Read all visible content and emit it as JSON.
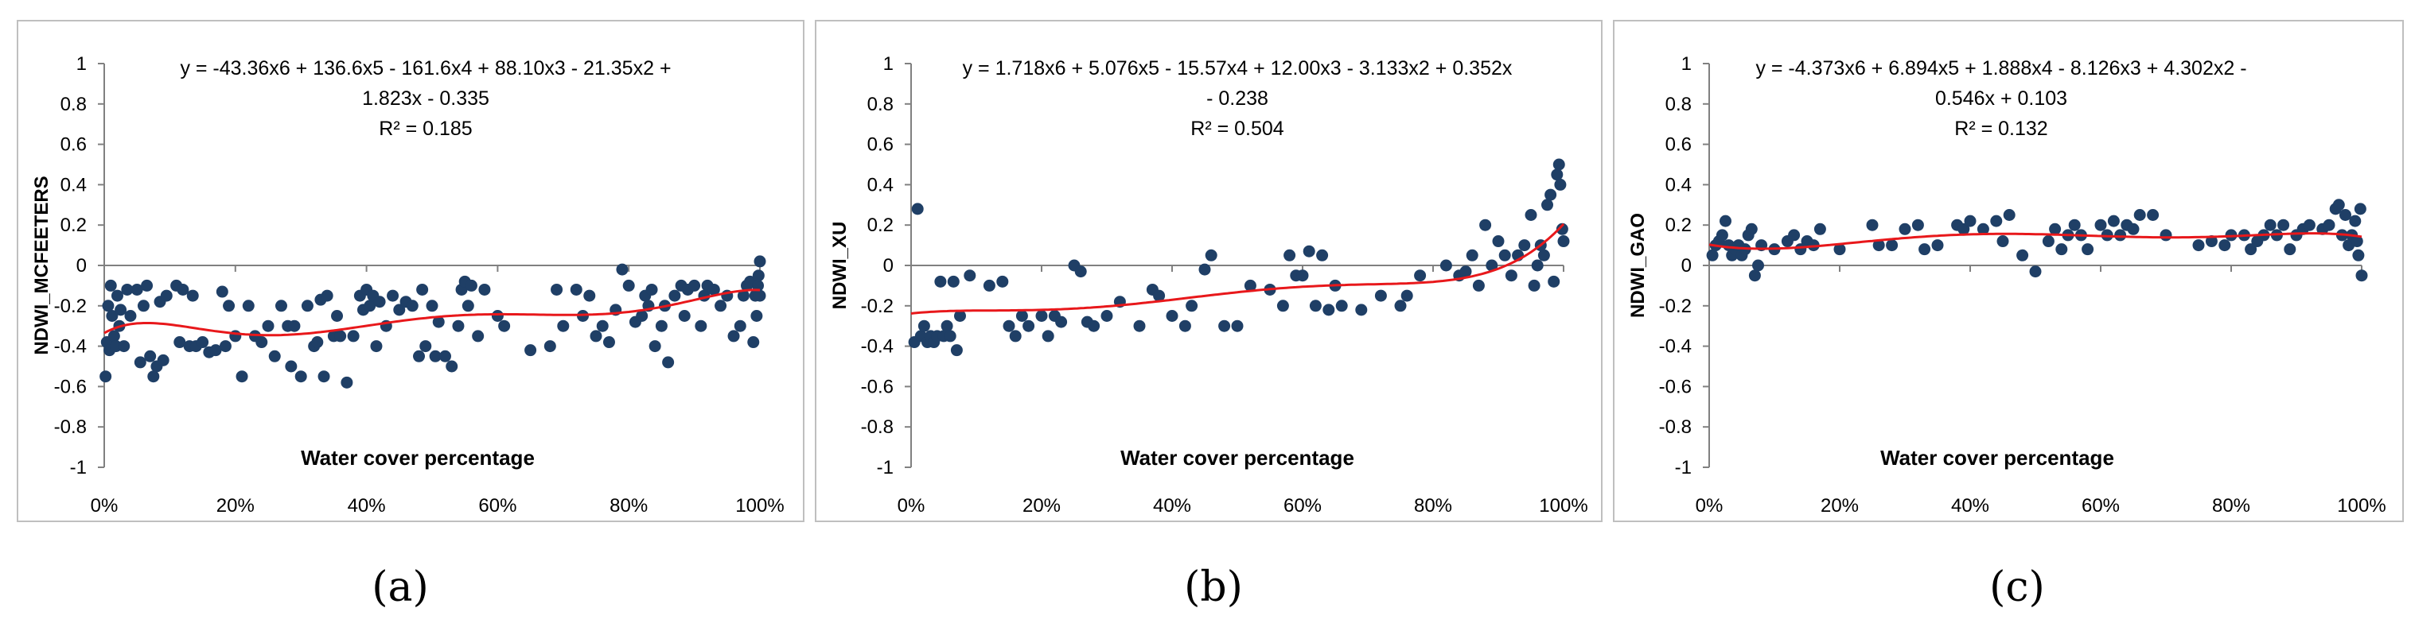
{
  "colors": {
    "marker": "#1f3f66",
    "trend": "#e8181b",
    "axis": "#808080",
    "frame": "#bfbfbf",
    "text": "#000000"
  },
  "chart_data": [
    {
      "type": "scatter",
      "caption": "(a)",
      "ylabel": "NDWI_MCFEETERS",
      "xlabel": "Water cover percentage",
      "xlim": [
        0,
        100
      ],
      "ylim": [
        -1,
        1
      ],
      "y_ticks": [
        "1",
        "0.8",
        "0.6",
        "0.4",
        "0.2",
        "0",
        "-0.2",
        "-0.4",
        "-0.6",
        "-0.8",
        "-1"
      ],
      "x_ticks": [
        "0%",
        "20%",
        "40%",
        "60%",
        "80%",
        "100%"
      ],
      "equation_lines": [
        "y = -43.36x6 + 136.6x5 - 161.6x4 + 88.10x3 - 21.35x2 +",
        "1.823x - 0.335"
      ],
      "r2_label": "R² = 0.185",
      "trend_coefficients": [
        -43.36,
        136.6,
        -161.6,
        88.1,
        -21.35,
        1.823,
        -0.335
      ],
      "points": [
        [
          0.2,
          -0.55
        ],
        [
          0.4,
          -0.38
        ],
        [
          0.6,
          -0.2
        ],
        [
          0.8,
          -0.42
        ],
        [
          1,
          -0.1
        ],
        [
          1.2,
          -0.25
        ],
        [
          1.5,
          -0.35
        ],
        [
          1.8,
          -0.4
        ],
        [
          2,
          -0.15
        ],
        [
          2.3,
          -0.3
        ],
        [
          2.5,
          -0.22
        ],
        [
          3,
          -0.4
        ],
        [
          3.5,
          -0.12
        ],
        [
          4,
          -0.25
        ],
        [
          5,
          -0.12
        ],
        [
          5.5,
          -0.48
        ],
        [
          6,
          -0.2
        ],
        [
          6.5,
          -0.1
        ],
        [
          7,
          -0.45
        ],
        [
          7.5,
          -0.55
        ],
        [
          8,
          -0.5
        ],
        [
          8.5,
          -0.18
        ],
        [
          9,
          -0.47
        ],
        [
          9.5,
          -0.15
        ],
        [
          11,
          -0.1
        ],
        [
          11.5,
          -0.38
        ],
        [
          12,
          -0.12
        ],
        [
          13,
          -0.4
        ],
        [
          13.5,
          -0.15
        ],
        [
          14,
          -0.4
        ],
        [
          15,
          -0.38
        ],
        [
          16,
          -0.43
        ],
        [
          17,
          -0.42
        ],
        [
          18,
          -0.13
        ],
        [
          18.5,
          -0.4
        ],
        [
          19,
          -0.2
        ],
        [
          20,
          -0.35
        ],
        [
          21,
          -0.55
        ],
        [
          22,
          -0.2
        ],
        [
          23,
          -0.35
        ],
        [
          24,
          -0.38
        ],
        [
          25,
          -0.3
        ],
        [
          26,
          -0.45
        ],
        [
          27,
          -0.2
        ],
        [
          28,
          -0.3
        ],
        [
          28.5,
          -0.5
        ],
        [
          29,
          -0.3
        ],
        [
          30,
          -0.55
        ],
        [
          31,
          -0.2
        ],
        [
          32,
          -0.4
        ],
        [
          32.5,
          -0.38
        ],
        [
          33,
          -0.17
        ],
        [
          33.5,
          -0.55
        ],
        [
          34,
          -0.15
        ],
        [
          35,
          -0.35
        ],
        [
          35.5,
          -0.25
        ],
        [
          36,
          -0.35
        ],
        [
          37,
          -0.58
        ],
        [
          38,
          -0.35
        ],
        [
          39,
          -0.15
        ],
        [
          39.5,
          -0.22
        ],
        [
          40,
          -0.12
        ],
        [
          40.5,
          -0.2
        ],
        [
          41,
          -0.15
        ],
        [
          41.5,
          -0.4
        ],
        [
          42,
          -0.18
        ],
        [
          43,
          -0.3
        ],
        [
          44,
          -0.15
        ],
        [
          45,
          -0.22
        ],
        [
          46,
          -0.18
        ],
        [
          47,
          -0.2
        ],
        [
          48,
          -0.45
        ],
        [
          48.5,
          -0.12
        ],
        [
          49,
          -0.4
        ],
        [
          50,
          -0.2
        ],
        [
          50.5,
          -0.45
        ],
        [
          51,
          -0.28
        ],
        [
          52,
          -0.45
        ],
        [
          53,
          -0.5
        ],
        [
          54,
          -0.3
        ],
        [
          54.5,
          -0.12
        ],
        [
          55,
          -0.08
        ],
        [
          55.5,
          -0.2
        ],
        [
          56,
          -0.1
        ],
        [
          57,
          -0.35
        ],
        [
          58,
          -0.12
        ],
        [
          60,
          -0.25
        ],
        [
          61,
          -0.3
        ],
        [
          65,
          -0.42
        ],
        [
          68,
          -0.4
        ],
        [
          69,
          -0.12
        ],
        [
          70,
          -0.3
        ],
        [
          72,
          -0.12
        ],
        [
          73,
          -0.25
        ],
        [
          74,
          -0.15
        ],
        [
          75,
          -0.35
        ],
        [
          76,
          -0.3
        ],
        [
          77,
          -0.38
        ],
        [
          78,
          -0.22
        ],
        [
          79,
          -0.02
        ],
        [
          80,
          -0.1
        ],
        [
          81,
          -0.28
        ],
        [
          82,
          -0.25
        ],
        [
          82.5,
          -0.15
        ],
        [
          83,
          -0.2
        ],
        [
          83.5,
          -0.12
        ],
        [
          84,
          -0.4
        ],
        [
          85,
          -0.3
        ],
        [
          85.5,
          -0.2
        ],
        [
          86,
          -0.48
        ],
        [
          87,
          -0.15
        ],
        [
          88,
          -0.1
        ],
        [
          88.5,
          -0.25
        ],
        [
          89,
          -0.12
        ],
        [
          90,
          -0.1
        ],
        [
          91,
          -0.3
        ],
        [
          91.5,
          -0.15
        ],
        [
          92,
          -0.1
        ],
        [
          93,
          -0.12
        ],
        [
          94,
          -0.2
        ],
        [
          95,
          -0.15
        ],
        [
          96,
          -0.35
        ],
        [
          97,
          -0.3
        ],
        [
          97.5,
          -0.15
        ],
        [
          98,
          -0.1
        ],
        [
          98.5,
          -0.08
        ],
        [
          99,
          -0.38
        ],
        [
          99.3,
          -0.15
        ],
        [
          99.5,
          -0.25
        ],
        [
          99.7,
          -0.1
        ],
        [
          99.8,
          -0.05
        ],
        [
          100,
          0.02
        ],
        [
          100,
          -0.15
        ]
      ]
    },
    {
      "type": "scatter",
      "caption": "(b)",
      "ylabel": "NDWI_XU",
      "xlabel": "Water cover percentage",
      "xlim": [
        0,
        100
      ],
      "ylim": [
        -1,
        1
      ],
      "y_ticks": [
        "1",
        "0.8",
        "0.6",
        "0.4",
        "0.2",
        "0",
        "-0.2",
        "-0.4",
        "-0.6",
        "-0.8",
        "-1"
      ],
      "x_ticks": [
        "0%",
        "20%",
        "40%",
        "60%",
        "80%",
        "100%"
      ],
      "equation_lines": [
        "y = 1.718x6 + 5.076x5 - 15.57x4 + 12.00x3 - 3.133x2 + 0.352x",
        "- 0.238"
      ],
      "r2_label": "R² = 0.504",
      "trend_coefficients": [
        1.718,
        5.076,
        -15.57,
        12.0,
        -3.133,
        0.352,
        -0.238
      ],
      "points": [
        [
          0.5,
          -0.38
        ],
        [
          1,
          0.28
        ],
        [
          1.5,
          -0.35
        ],
        [
          2,
          -0.3
        ],
        [
          2.5,
          -0.38
        ],
        [
          3,
          -0.35
        ],
        [
          3.5,
          -0.38
        ],
        [
          4,
          -0.35
        ],
        [
          4.5,
          -0.08
        ],
        [
          5,
          -0.35
        ],
        [
          5.5,
          -0.3
        ],
        [
          6,
          -0.35
        ],
        [
          6.5,
          -0.08
        ],
        [
          7,
          -0.42
        ],
        [
          7.5,
          -0.25
        ],
        [
          9,
          -0.05
        ],
        [
          12,
          -0.1
        ],
        [
          14,
          -0.08
        ],
        [
          15,
          -0.3
        ],
        [
          16,
          -0.35
        ],
        [
          17,
          -0.25
        ],
        [
          18,
          -0.3
        ],
        [
          20,
          -0.25
        ],
        [
          21,
          -0.35
        ],
        [
          22,
          -0.25
        ],
        [
          23,
          -0.28
        ],
        [
          25,
          0.0
        ],
        [
          26,
          -0.03
        ],
        [
          27,
          -0.28
        ],
        [
          28,
          -0.3
        ],
        [
          30,
          -0.25
        ],
        [
          32,
          -0.18
        ],
        [
          35,
          -0.3
        ],
        [
          37,
          -0.12
        ],
        [
          38,
          -0.15
        ],
        [
          40,
          -0.25
        ],
        [
          42,
          -0.3
        ],
        [
          43,
          -0.2
        ],
        [
          45,
          -0.02
        ],
        [
          46,
          0.05
        ],
        [
          48,
          -0.3
        ],
        [
          50,
          -0.3
        ],
        [
          52,
          -0.1
        ],
        [
          55,
          -0.12
        ],
        [
          57,
          -0.2
        ],
        [
          58,
          0.05
        ],
        [
          59,
          -0.05
        ],
        [
          60,
          -0.05
        ],
        [
          61,
          0.07
        ],
        [
          62,
          -0.2
        ],
        [
          63,
          0.05
        ],
        [
          64,
          -0.22
        ],
        [
          65,
          -0.1
        ],
        [
          66,
          -0.2
        ],
        [
          69,
          -0.22
        ],
        [
          72,
          -0.15
        ],
        [
          75,
          -0.2
        ],
        [
          76,
          -0.15
        ],
        [
          78,
          -0.05
        ],
        [
          82,
          0.0
        ],
        [
          84,
          -0.05
        ],
        [
          85,
          -0.03
        ],
        [
          86,
          0.05
        ],
        [
          87,
          -0.1
        ],
        [
          88,
          0.2
        ],
        [
          89,
          0.0
        ],
        [
          90,
          0.12
        ],
        [
          91,
          0.05
        ],
        [
          92,
          -0.05
        ],
        [
          93,
          0.05
        ],
        [
          94,
          0.1
        ],
        [
          95,
          0.25
        ],
        [
          95.5,
          -0.1
        ],
        [
          96,
          0.0
        ],
        [
          96.5,
          0.1
        ],
        [
          97,
          0.05
        ],
        [
          97.5,
          0.3
        ],
        [
          98,
          0.35
        ],
        [
          98.5,
          -0.08
        ],
        [
          99,
          0.45
        ],
        [
          99.3,
          0.5
        ],
        [
          99.5,
          0.4
        ],
        [
          99.8,
          0.18
        ],
        [
          100,
          0.12
        ]
      ]
    },
    {
      "type": "scatter",
      "caption": "(c)",
      "ylabel": "NDWI_GAO",
      "xlabel": "Water cover percentage",
      "xlim": [
        0,
        100
      ],
      "ylim": [
        -1,
        1
      ],
      "y_ticks": [
        "1",
        "0.8",
        "0.6",
        "0.4",
        "0.2",
        "0",
        "-0.2",
        "-0.4",
        "-0.6",
        "-0.8",
        "-1"
      ],
      "x_ticks": [
        "0%",
        "20%",
        "40%",
        "60%",
        "80%",
        "100%"
      ],
      "equation_lines": [
        "y = -4.373x6 + 6.894x5 + 1.888x4 - 8.126x3 + 4.302x2 -",
        "0.546x + 0.103"
      ],
      "r2_label": "R² = 0.132",
      "trend_coefficients": [
        -4.373,
        6.894,
        1.888,
        -8.126,
        4.302,
        -0.546,
        0.103
      ],
      "points": [
        [
          0.5,
          0.05
        ],
        [
          1,
          0.1
        ],
        [
          1.5,
          0.12
        ],
        [
          2,
          0.15
        ],
        [
          2.5,
          0.22
        ],
        [
          3,
          0.1
        ],
        [
          3.5,
          0.05
        ],
        [
          4,
          0.08
        ],
        [
          4.5,
          0.1
        ],
        [
          5,
          0.05
        ],
        [
          5.5,
          0.08
        ],
        [
          6,
          0.15
        ],
        [
          6.5,
          0.18
        ],
        [
          7,
          -0.05
        ],
        [
          7.5,
          0.0
        ],
        [
          8,
          0.1
        ],
        [
          10,
          0.08
        ],
        [
          12,
          0.12
        ],
        [
          13,
          0.15
        ],
        [
          14,
          0.08
        ],
        [
          15,
          0.12
        ],
        [
          16,
          0.1
        ],
        [
          17,
          0.18
        ],
        [
          20,
          0.08
        ],
        [
          25,
          0.2
        ],
        [
          26,
          0.1
        ],
        [
          28,
          0.1
        ],
        [
          30,
          0.18
        ],
        [
          32,
          0.2
        ],
        [
          33,
          0.08
        ],
        [
          35,
          0.1
        ],
        [
          38,
          0.2
        ],
        [
          39,
          0.18
        ],
        [
          40,
          0.22
        ],
        [
          42,
          0.18
        ],
        [
          44,
          0.22
        ],
        [
          45,
          0.12
        ],
        [
          46,
          0.25
        ],
        [
          48,
          0.05
        ],
        [
          50,
          -0.03
        ],
        [
          52,
          0.12
        ],
        [
          53,
          0.18
        ],
        [
          54,
          0.08
        ],
        [
          55,
          0.15
        ],
        [
          56,
          0.2
        ],
        [
          57,
          0.15
        ],
        [
          58,
          0.08
        ],
        [
          60,
          0.2
        ],
        [
          61,
          0.15
        ],
        [
          62,
          0.22
        ],
        [
          63,
          0.15
        ],
        [
          64,
          0.2
        ],
        [
          65,
          0.18
        ],
        [
          66,
          0.25
        ],
        [
          68,
          0.25
        ],
        [
          70,
          0.15
        ],
        [
          75,
          0.1
        ],
        [
          77,
          0.12
        ],
        [
          79,
          0.1
        ],
        [
          80,
          0.15
        ],
        [
          82,
          0.15
        ],
        [
          83,
          0.08
        ],
        [
          84,
          0.12
        ],
        [
          85,
          0.15
        ],
        [
          86,
          0.2
        ],
        [
          87,
          0.15
        ],
        [
          88,
          0.2
        ],
        [
          89,
          0.08
        ],
        [
          90,
          0.15
        ],
        [
          91,
          0.18
        ],
        [
          92,
          0.2
        ],
        [
          94,
          0.18
        ],
        [
          95,
          0.2
        ],
        [
          96,
          0.28
        ],
        [
          96.5,
          0.3
        ],
        [
          97,
          0.15
        ],
        [
          97.5,
          0.25
        ],
        [
          98,
          0.1
        ],
        [
          98.5,
          0.15
        ],
        [
          99,
          0.22
        ],
        [
          99.3,
          0.12
        ],
        [
          99.5,
          0.05
        ],
        [
          99.8,
          0.28
        ],
        [
          100,
          -0.05
        ]
      ]
    }
  ]
}
